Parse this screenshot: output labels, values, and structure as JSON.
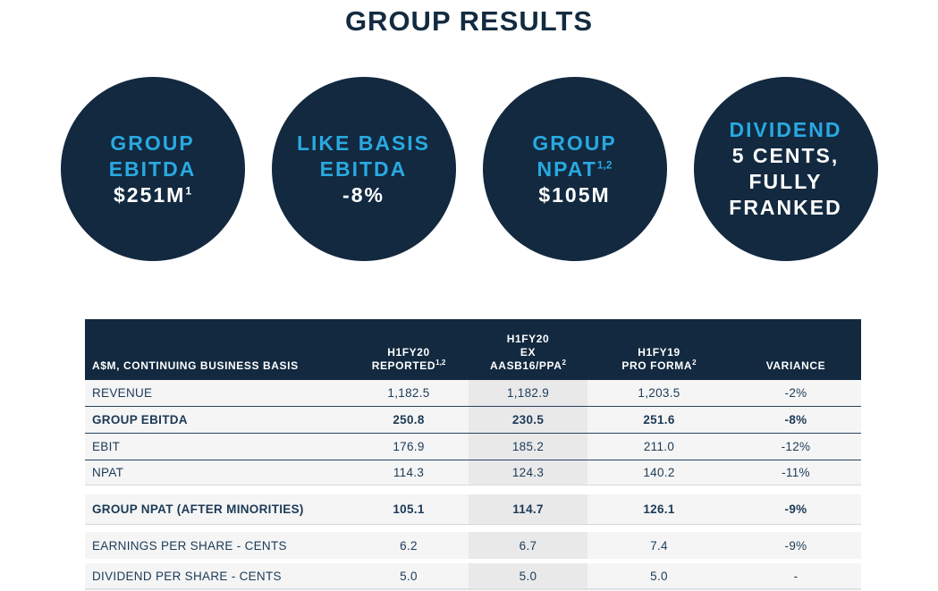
{
  "title": "GROUP RESULTS",
  "colors": {
    "navy": "#122940",
    "accent_blue": "#29a9e0",
    "white": "#ffffff",
    "row_bg": "#f5f5f6",
    "highlight_column_bg": "#e9e9ea"
  },
  "circles": [
    {
      "heading_line1": "GROUP",
      "heading_line2": "EBITDA",
      "heading_sup": "",
      "value_line1": "$251M",
      "value_sup": "1"
    },
    {
      "heading_line1": "LIKE BASIS",
      "heading_line2": "EBITDA",
      "heading_sup": "",
      "value_line1": "-8%",
      "value_sup": ""
    },
    {
      "heading_line1": "GROUP",
      "heading_line2": "NPAT",
      "heading_sup": "1,2",
      "value_line1": "$105M",
      "value_sup": ""
    },
    {
      "heading_line1": "DIVIDEND",
      "heading_line2": "",
      "heading_sup": "",
      "value_line1": "5 CENTS,",
      "value_sup": "",
      "value_line2": "FULLY",
      "value_line3": "FRANKED"
    }
  ],
  "table": {
    "header": {
      "label": "A$M, CONTINUING BUSINESS BASIS",
      "col2_line1": "H1FY20",
      "col2_line2": "REPORTED",
      "col2_sup": "1,2",
      "col3_line1": "H1FY20",
      "col3_line2": "EX",
      "col3_line3": "AASB16/PPA",
      "col3_sup": "2",
      "col4_line1": "H1FY19",
      "col4_line2": "PRO FORMA",
      "col4_sup": "2",
      "col5": "VARIANCE"
    },
    "rows": [
      {
        "label": "REVENUE",
        "reported": "1,182.5",
        "ex_aasb": "1,182.9",
        "pro_forma": "1,203.5",
        "variance": "-2%"
      },
      {
        "label": "GROUP EBITDA",
        "reported": "250.8",
        "ex_aasb": "230.5",
        "pro_forma": "251.6",
        "variance": "-8%"
      },
      {
        "label": "EBIT",
        "reported": "176.9",
        "ex_aasb": "185.2",
        "pro_forma": "211.0",
        "variance": "-12%"
      },
      {
        "label": "NPAT",
        "reported": "114.3",
        "ex_aasb": "124.3",
        "pro_forma": "140.2",
        "variance": "-11%"
      },
      {
        "label": "GROUP NPAT (AFTER MINORITIES)",
        "reported": "105.1",
        "ex_aasb": "114.7",
        "pro_forma": "126.1",
        "variance": "-9%"
      },
      {
        "label": "EARNINGS PER SHARE  - CENTS",
        "reported": "6.2",
        "ex_aasb": "6.7",
        "pro_forma": "7.4",
        "variance": "-9%"
      },
      {
        "label": "DIVIDEND PER SHARE  - CENTS",
        "reported": "5.0",
        "ex_aasb": "5.0",
        "pro_forma": "5.0",
        "variance": "-"
      }
    ]
  }
}
